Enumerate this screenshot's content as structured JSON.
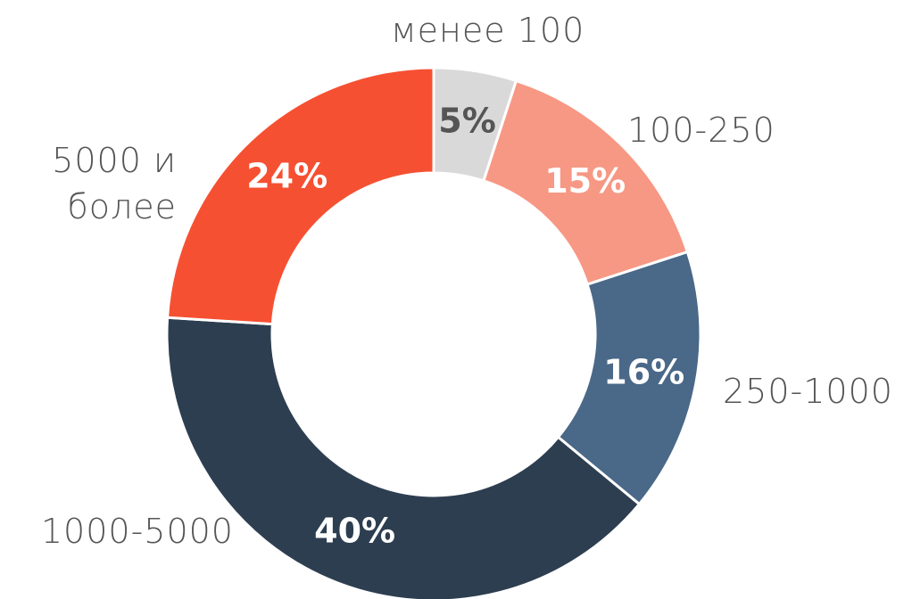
{
  "chart_data": {
    "type": "donut",
    "categories": [
      "менее 100",
      "100-250",
      "250-1000",
      "1000-5000",
      "5000 и более"
    ],
    "values": [
      5,
      15,
      16,
      40,
      24
    ],
    "value_labels": [
      "5%",
      "15%",
      "16%",
      "40%",
      "24%"
    ],
    "colors": [
      "#d9d9d9",
      "#f79884",
      "#4a6888",
      "#2d3e50",
      "#f65032"
    ]
  }
}
